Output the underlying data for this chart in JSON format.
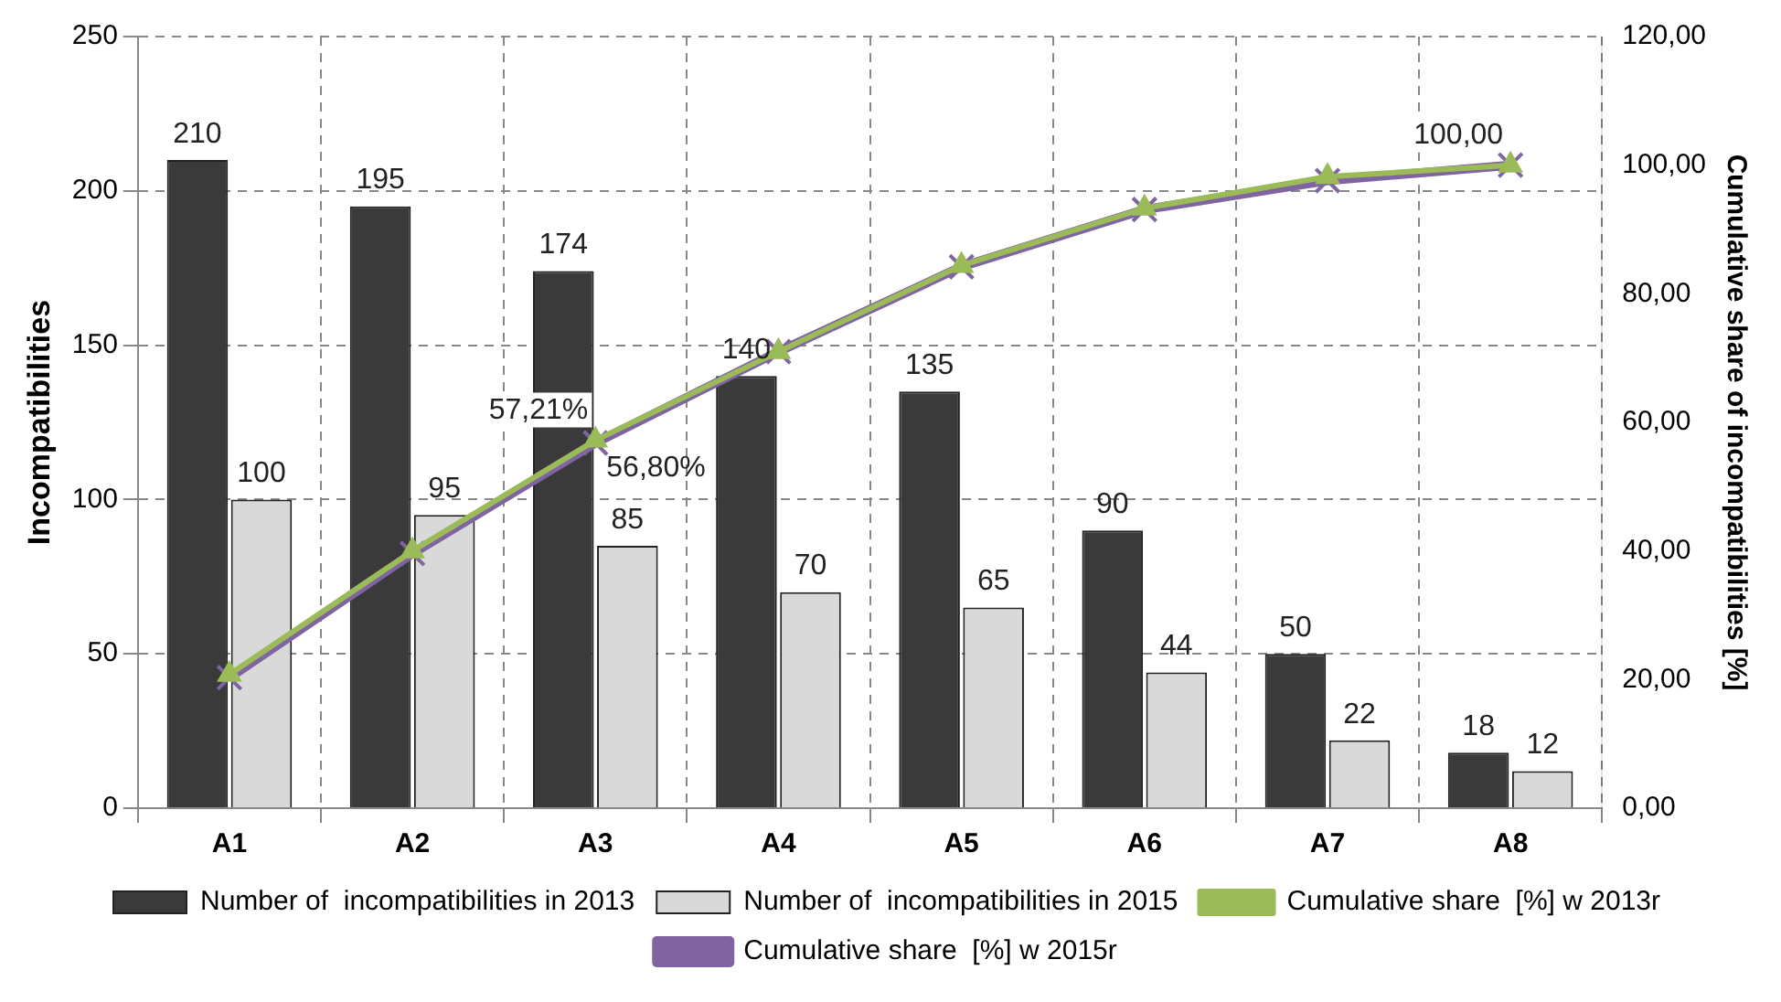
{
  "chart_data": {
    "type": "bar",
    "categories": [
      "A1",
      "A2",
      "A3",
      "A4",
      "A5",
      "A6",
      "A7",
      "A8"
    ],
    "ylabel": "Incompatibilities",
    "y2label": "Cumulative share of incompatibilities [%]",
    "series": [
      {
        "name": "Number of  incompatibilities in 2013",
        "color": "#3a3a3a",
        "values": [
          210,
          195,
          174,
          140,
          135,
          90,
          50,
          18
        ]
      },
      {
        "name": "Number of  incompatibilities in 2015",
        "color": "#d9d9d9",
        "values": [
          100,
          95,
          85,
          70,
          65,
          44,
          22,
          12
        ]
      },
      {
        "name": "Cumulative share  [%] w 2013r",
        "type": "line",
        "axis": "y2",
        "color": "#9bbb59",
        "marker": "triangle",
        "values": [
          20.8,
          40.0,
          57.21,
          71.0,
          84.4,
          93.3,
          98.2,
          100
        ],
        "value_labels": [
          null,
          null,
          "57,21%",
          null,
          null,
          null,
          null,
          "100,00"
        ]
      },
      {
        "name": "Cumulative share  [%] w 2015r",
        "type": "line",
        "axis": "y2",
        "color": "#8064a2",
        "marker": "cross",
        "values": [
          20.3,
          39.6,
          56.8,
          71.0,
          84.2,
          93.1,
          97.6,
          100
        ],
        "value_labels": [
          null,
          null,
          "56,80%",
          null,
          null,
          null,
          null,
          null
        ]
      }
    ],
    "ylim": [
      0,
      250
    ],
    "yticks": [
      0,
      50,
      100,
      150,
      200,
      250
    ],
    "y2lim": [
      0,
      120
    ],
    "y2ticks": [
      {
        "value": 0,
        "label": "0,00"
      },
      {
        "value": 20,
        "label": "20,00"
      },
      {
        "value": 40,
        "label": "40,00"
      },
      {
        "value": 60,
        "label": "60,00"
      },
      {
        "value": 80,
        "label": "80,00"
      },
      {
        "value": 100,
        "label": "100,00"
      },
      {
        "value": 120,
        "label": "120,00"
      }
    ],
    "data_labels": true,
    "grid": true,
    "legend": "bottom"
  }
}
